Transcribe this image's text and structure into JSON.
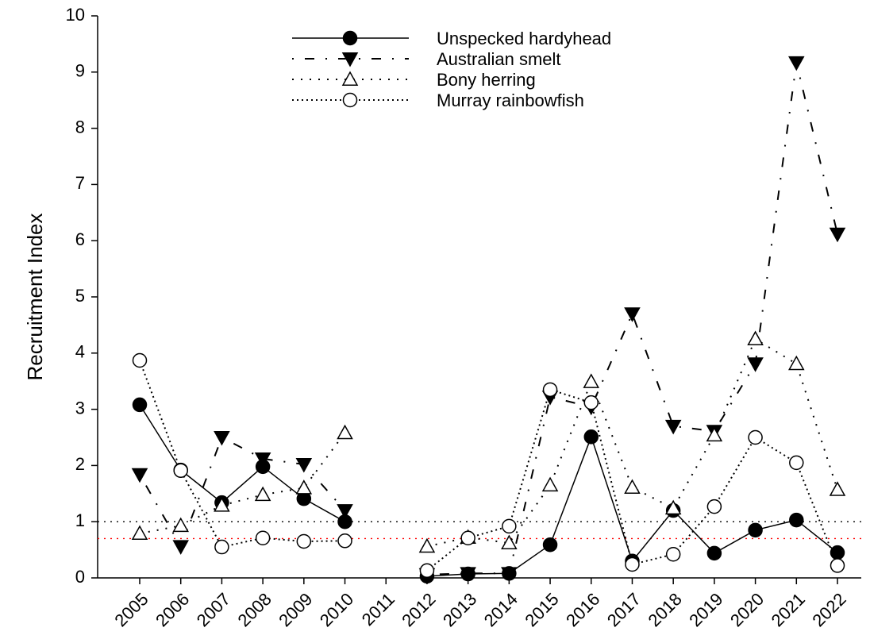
{
  "chart_data": {
    "type": "line",
    "y_label": "Recruitment Index",
    "categories": [
      "2005",
      "2006",
      "2007",
      "2008",
      "2009",
      "2010",
      "2011",
      "2012",
      "2013",
      "2014",
      "2015",
      "2016",
      "2017",
      "2018",
      "2019",
      "2020",
      "2021",
      "2022"
    ],
    "ylim": [
      0,
      10
    ],
    "yticks": [
      0,
      1,
      2,
      3,
      4,
      5,
      6,
      7,
      8,
      9,
      10
    ],
    "reference_lines": [
      {
        "value": 1,
        "color": "#000000"
      },
      {
        "value": 0.7,
        "color": "#ff0000"
      }
    ],
    "series": [
      {
        "name": "Unspecked hardyhead",
        "color": "#000000",
        "line_style": "solid",
        "marker": "circle",
        "marker_fill": "#000000",
        "values": [
          3.08,
          1.92,
          1.34,
          1.98,
          1.41,
          1.0,
          null,
          0.03,
          0.07,
          0.08,
          0.59,
          2.51,
          0.3,
          1.2,
          0.44,
          0.85,
          1.03,
          0.45
        ]
      },
      {
        "name": "Australian smelt",
        "color": "#000000",
        "line_style": "dashdot",
        "marker": "triangle-down",
        "marker_fill": "#000000",
        "values": [
          1.84,
          0.56,
          2.5,
          2.12,
          2.02,
          1.2,
          null,
          0.06,
          0.08,
          0.08,
          3.22,
          3.04,
          4.7,
          2.7,
          2.61,
          3.81,
          9.17,
          6.12
        ]
      },
      {
        "name": "Bony herring",
        "color": "#000000",
        "line_style": "dotted",
        "marker": "triangle-up",
        "marker_fill": "#ffffff",
        "values": [
          0.79,
          0.93,
          1.29,
          1.48,
          1.6,
          2.58,
          null,
          0.56,
          0.72,
          0.62,
          1.65,
          3.49,
          1.61,
          1.24,
          2.54,
          4.25,
          3.81,
          1.57
        ]
      },
      {
        "name": "Murray rainbowfish",
        "color": "#000000",
        "line_style": "densedot",
        "marker": "circle",
        "marker_fill": "#ffffff",
        "values": [
          3.87,
          1.91,
          0.55,
          0.71,
          0.65,
          0.66,
          null,
          0.13,
          0.71,
          0.92,
          3.35,
          3.12,
          0.24,
          0.42,
          1.27,
          2.5,
          2.05,
          0.22
        ]
      }
    ]
  }
}
